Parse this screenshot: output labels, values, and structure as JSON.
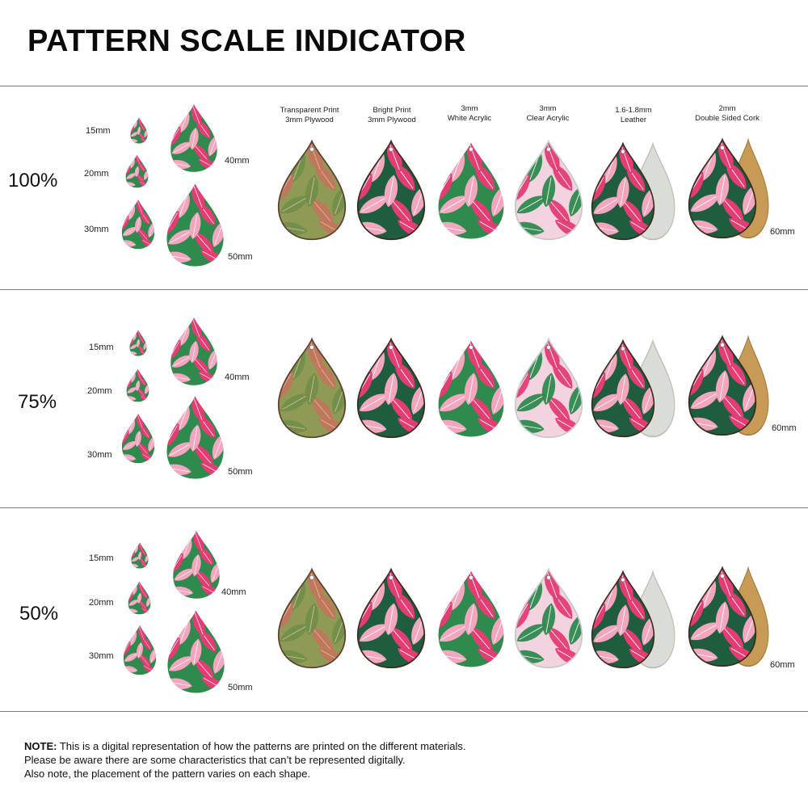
{
  "title": "PATTERN SCALE INDICATOR",
  "rows": [
    {
      "scale": "100%",
      "sizes": [
        "15mm",
        "20mm",
        "30mm",
        "40mm",
        "50mm"
      ],
      "end_size": "60mm"
    },
    {
      "scale": "75%",
      "sizes": [
        "15mm",
        "20mm",
        "30mm",
        "40mm",
        "50mm"
      ],
      "end_size": "60mm"
    },
    {
      "scale": "50%",
      "sizes": [
        "15mm",
        "20mm",
        "30mm",
        "40mm",
        "50mm"
      ],
      "end_size": "60mm"
    }
  ],
  "materials": [
    {
      "line1": "Transparent Print",
      "line2": "3mm Plywood"
    },
    {
      "line1": "Bright Print",
      "line2": "3mm Plywood"
    },
    {
      "line1": "3mm",
      "line2": "White Acrylic"
    },
    {
      "line1": "3mm",
      "line2": "Clear Acrylic"
    },
    {
      "line1": "1.6-1.8mm",
      "line2": "Leather"
    },
    {
      "line1": "2mm",
      "line2": "Double Sided Cork"
    }
  ],
  "note": {
    "label": "NOTE:",
    "line1": " This is a digital representation of how the patterns are printed on the different materials.",
    "line2": "Please be aware there are some characteristics that can’t be represented digitally.",
    "line3": "Also note, the placement of the pattern varies on each shape."
  },
  "colors": {
    "pink": "#e43d74",
    "light_pink": "#f4a6bf",
    "green": "#2f8a4e",
    "dark_green": "#1f5d3f",
    "olive": "#8f9a55",
    "leather_back": "#d9ddd5",
    "cork_back": "#c79a55"
  }
}
